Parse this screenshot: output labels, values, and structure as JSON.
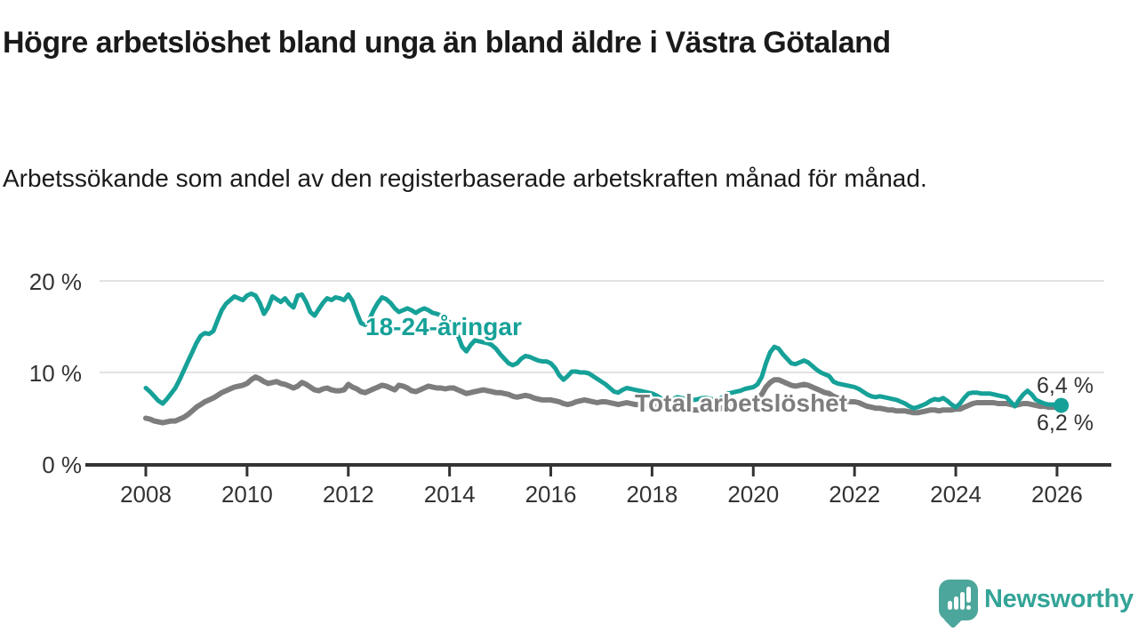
{
  "header": {
    "title": "Högre arbetslöshet bland unga än bland äldre i Västra Götaland",
    "subtitle": "Arbetssökande som andel av den registerbaserade arbetskraften månad för månad."
  },
  "footer": {
    "brand": "Newsworthy"
  },
  "colors": {
    "young_line": "#16a198",
    "total_line": "#7d7d7d",
    "grid": "#d9d9d9",
    "axis": "#333333",
    "text": "#1a1a1a",
    "logo_bubble": "#4da69b",
    "logo_text": "#33a497"
  },
  "chart_data": {
    "type": "line",
    "unit": "%",
    "grid": "horizontal",
    "x_start": "2008-01",
    "x_end": "2026-02",
    "ylim": [
      0,
      21
    ],
    "y_tick_values": [
      0,
      10,
      20
    ],
    "y_tick_labels": [
      "0 %",
      "10 %",
      "20 %"
    ],
    "x_tick_years": [
      2008,
      2010,
      2012,
      2014,
      2016,
      2018,
      2020,
      2022,
      2024,
      2026
    ],
    "x_tick_labels": [
      "2008",
      "2010",
      "2012",
      "2014",
      "2016",
      "2018",
      "2020",
      "2022",
      "2024",
      "2026"
    ],
    "series": [
      {
        "name": "18-24-åringar",
        "color": "#16a198",
        "end_label": "6,4 %",
        "end_value": 6.4,
        "monthly_values": [
          8.3,
          7.9,
          7.4,
          6.9,
          6.6,
          7.1,
          7.7,
          8.3,
          9.2,
          10.2,
          11.2,
          12.2,
          13.2,
          14.0,
          14.3,
          14.2,
          14.5,
          15.7,
          16.8,
          17.5,
          17.9,
          18.3,
          18.1,
          17.9,
          18.4,
          18.6,
          18.4,
          17.6,
          16.4,
          17.1,
          18.3,
          18.0,
          17.7,
          18.1,
          17.5,
          17.1,
          18.4,
          18.5,
          17.7,
          16.6,
          16.2,
          16.9,
          17.6,
          18.1,
          17.9,
          18.2,
          18.1,
          17.9,
          18.5,
          17.8,
          16.5,
          15.4,
          15.2,
          15.8,
          16.8,
          17.6,
          18.2,
          18.0,
          17.6,
          17.0,
          16.6,
          16.8,
          17.0,
          16.8,
          16.5,
          16.8,
          17.0,
          16.8,
          16.5,
          16.4,
          16.2,
          15.8,
          15.5,
          15.2,
          14.0,
          12.8,
          12.3,
          13.0,
          13.5,
          13.4,
          13.3,
          13.2,
          13.0,
          12.6,
          12.0,
          11.5,
          11.0,
          10.8,
          11.0,
          11.5,
          11.8,
          11.7,
          11.5,
          11.3,
          11.2,
          11.2,
          11.0,
          10.5,
          9.7,
          9.2,
          9.6,
          10.1,
          10.1,
          10.0,
          10.0,
          9.9,
          9.6,
          9.3,
          9.0,
          8.7,
          8.3,
          7.9,
          7.8,
          8.1,
          8.3,
          8.2,
          8.1,
          8.0,
          7.9,
          7.8,
          7.7,
          7.5,
          7.2,
          7.0,
          6.9,
          7.1,
          7.3,
          7.2,
          7.1,
          7.0,
          7.0,
          7.1,
          7.2,
          7.2,
          7.1,
          7.0,
          7.1,
          7.4,
          7.7,
          7.8,
          7.9,
          8.0,
          8.2,
          8.3,
          8.4,
          8.7,
          9.5,
          11.0,
          12.2,
          12.8,
          12.6,
          12.0,
          11.5,
          11.0,
          10.9,
          11.1,
          11.3,
          11.1,
          10.7,
          10.3,
          10.0,
          9.8,
          9.6,
          9.0,
          8.8,
          8.7,
          8.6,
          8.5,
          8.4,
          8.2,
          7.9,
          7.6,
          7.4,
          7.3,
          7.4,
          7.3,
          7.2,
          7.1,
          7.0,
          6.8,
          6.6,
          6.3,
          6.1,
          6.2,
          6.4,
          6.6,
          6.9,
          7.1,
          7.0,
          7.2,
          6.9,
          6.5,
          6.2,
          6.6,
          7.2,
          7.7,
          7.8,
          7.8,
          7.7,
          7.7,
          7.7,
          7.6,
          7.5,
          7.4,
          7.3,
          6.8,
          6.3,
          7.0,
          7.6,
          8.0,
          7.6,
          7.0,
          6.8,
          6.6,
          6.5,
          6.5,
          6.4,
          6.4
        ]
      },
      {
        "name": "Total arbetslöshet",
        "color": "#7d7d7d",
        "end_label": "6,2 %",
        "end_value": 6.2,
        "monthly_values": [
          5.0,
          4.9,
          4.7,
          4.6,
          4.5,
          4.6,
          4.7,
          4.7,
          4.9,
          5.1,
          5.4,
          5.8,
          6.2,
          6.5,
          6.8,
          7.0,
          7.2,
          7.5,
          7.8,
          8.0,
          8.2,
          8.4,
          8.5,
          8.6,
          8.8,
          9.2,
          9.5,
          9.3,
          9.0,
          8.8,
          8.9,
          9.0,
          8.8,
          8.7,
          8.5,
          8.3,
          8.5,
          8.9,
          8.7,
          8.4,
          8.1,
          8.0,
          8.2,
          8.3,
          8.1,
          8.0,
          8.0,
          8.1,
          8.7,
          8.4,
          8.2,
          7.9,
          7.8,
          8.0,
          8.2,
          8.4,
          8.6,
          8.5,
          8.3,
          8.1,
          8.6,
          8.5,
          8.3,
          8.0,
          7.9,
          8.1,
          8.3,
          8.5,
          8.4,
          8.3,
          8.3,
          8.2,
          8.3,
          8.3,
          8.1,
          7.9,
          7.7,
          7.8,
          7.9,
          8.0,
          8.1,
          8.0,
          7.9,
          7.8,
          7.8,
          7.7,
          7.6,
          7.4,
          7.3,
          7.4,
          7.5,
          7.4,
          7.2,
          7.1,
          7.0,
          7.0,
          7.0,
          6.9,
          6.8,
          6.6,
          6.5,
          6.6,
          6.8,
          6.9,
          7.0,
          6.9,
          6.8,
          6.7,
          6.8,
          6.8,
          6.7,
          6.6,
          6.5,
          6.6,
          6.7,
          6.6,
          6.5,
          6.5,
          6.4,
          6.4,
          6.4,
          6.3,
          6.2,
          6.1,
          6.0,
          6.1,
          6.2,
          6.1,
          6.0,
          6.0,
          5.9,
          5.9,
          6.0,
          6.0,
          5.9,
          5.9,
          6.0,
          6.2,
          6.4,
          6.4,
          6.5,
          6.6,
          6.7,
          6.8,
          7.0,
          7.2,
          7.6,
          8.4,
          8.9,
          9.2,
          9.2,
          9.0,
          8.8,
          8.6,
          8.5,
          8.6,
          8.7,
          8.6,
          8.4,
          8.2,
          8.0,
          7.8,
          7.7,
          7.4,
          7.2,
          7.0,
          6.9,
          6.8,
          6.8,
          6.7,
          6.5,
          6.3,
          6.2,
          6.1,
          6.1,
          6.0,
          5.9,
          5.9,
          5.8,
          5.8,
          5.8,
          5.7,
          5.6,
          5.6,
          5.7,
          5.8,
          5.9,
          5.9,
          5.8,
          5.9,
          5.9,
          5.9,
          6.0,
          6.0,
          6.2,
          6.4,
          6.6,
          6.7,
          6.7,
          6.7,
          6.7,
          6.7,
          6.6,
          6.6,
          6.6,
          6.5,
          6.4,
          6.5,
          6.6,
          6.6,
          6.5,
          6.4,
          6.3,
          6.3,
          6.2,
          6.2,
          6.2,
          6.2
        ]
      }
    ]
  }
}
